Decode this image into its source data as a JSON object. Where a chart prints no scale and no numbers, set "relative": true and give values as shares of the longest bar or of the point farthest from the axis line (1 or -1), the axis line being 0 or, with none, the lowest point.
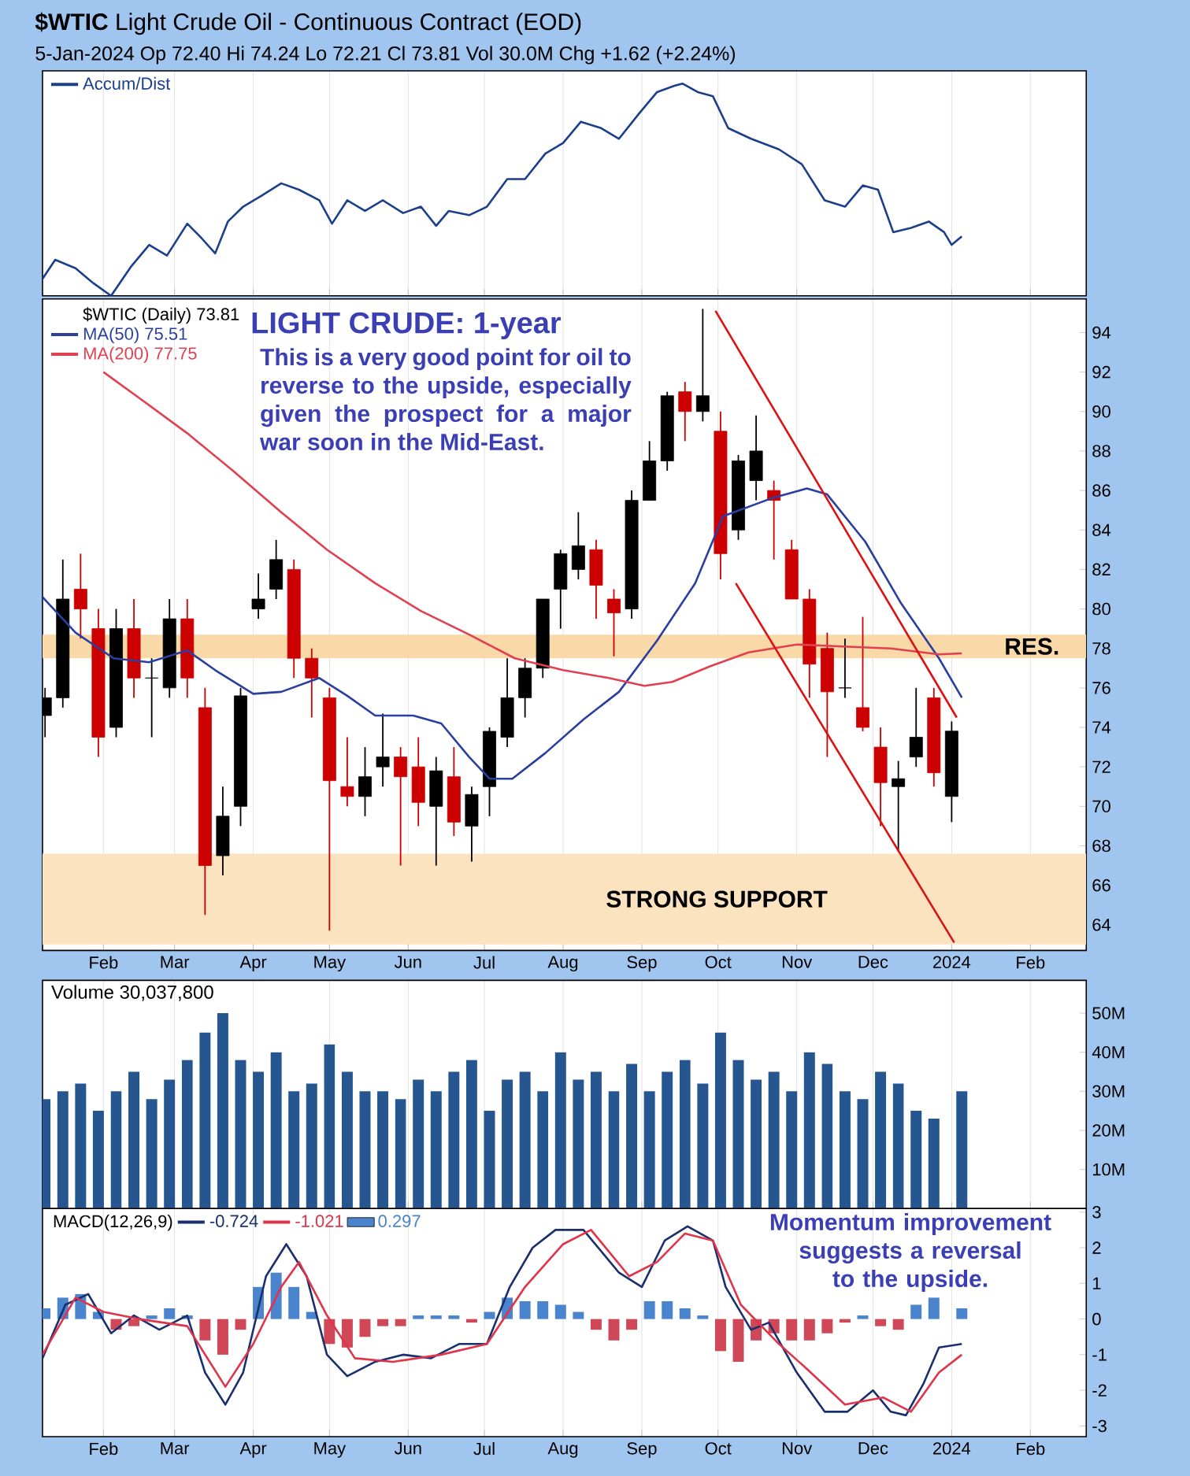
{
  "chart_data": [
    {
      "type": "line",
      "title": "**$WTIC** Light Crude Oil - Continuous Contract (EOD)",
      "subtitle": "5-Jan-2024   Op 72.40  Hi 74.24  Lo 72.21  Cl 73.81  Vol 30.0M  Chg +1.62 (+2.24%)",
      "relative": true,
      "x": [
        "2023-01-08",
        "2023-01-13",
        "2023-01-21",
        "2023-01-28",
        "2023-02-04",
        "2023-02-12",
        "2023-02-19",
        "2023-02-26",
        "2023-03-06",
        "2023-03-11",
        "2023-03-17",
        "2023-03-22",
        "2023-03-28",
        "2023-04-04",
        "2023-04-12",
        "2023-04-19",
        "2023-04-27",
        "2023-05-02",
        "2023-05-08",
        "2023-05-15",
        "2023-05-22",
        "2023-05-30",
        "2023-06-06",
        "2023-06-12",
        "2023-06-17",
        "2023-06-25",
        "2023-07-02",
        "2023-07-10",
        "2023-07-17",
        "2023-07-25",
        "2023-08-01",
        "2023-08-08",
        "2023-08-16",
        "2023-08-23",
        "2023-08-31",
        "2023-09-07",
        "2023-09-14",
        "2023-09-17",
        "2023-09-23",
        "2023-09-29",
        "2023-10-05",
        "2023-10-14",
        "2023-10-25",
        "2023-11-03",
        "2023-11-12",
        "2023-11-20",
        "2023-11-27",
        "2023-12-03",
        "2023-12-09",
        "2023-12-16",
        "2023-12-23",
        "2023-12-29",
        "2024-01-01",
        "2024-01-05"
      ],
      "series": [
        {
          "name": "Accum/Dist",
          "color": "#1c3f8c",
          "values": [
            0.08,
            0.17,
            0.13,
            0.06,
            0,
            0.14,
            0.24,
            0.19,
            0.34,
            0.28,
            0.2,
            0.35,
            0.42,
            0.47,
            0.53,
            0.5,
            0.45,
            0.34,
            0.45,
            0.4,
            0.45,
            0.39,
            0.42,
            0.33,
            0.4,
            0.38,
            0.42,
            0.55,
            0.55,
            0.67,
            0.72,
            0.82,
            0.79,
            0.74,
            0.86,
            0.96,
            0.99,
            1,
            0.96,
            0.94,
            0.79,
            0.74,
            0.69,
            0.62,
            0.45,
            0.42,
            0.52,
            0.5,
            0.3,
            0.32,
            0.35,
            0.3,
            0.24,
            0.28
          ]
        }
      ],
      "xlim": [
        "2023-01-08",
        "2024-02-23"
      ],
      "xticks": [
        {
          "value": "2023-02-01",
          "label": null
        },
        {
          "value": "2023-03-01",
          "label": null
        },
        {
          "value": "2023-04-01",
          "label": null
        },
        {
          "value": "2023-05-01",
          "label": null
        },
        {
          "value": "2023-06-01",
          "label": null
        },
        {
          "value": "2023-07-01",
          "label": null
        },
        {
          "value": "2023-08-01",
          "label": null
        },
        {
          "value": "2023-09-01",
          "label": null
        },
        {
          "value": "2023-10-01",
          "label": null
        },
        {
          "value": "2023-11-01",
          "label": null
        },
        {
          "value": "2023-12-01",
          "label": null
        },
        {
          "value": "2024-01-01",
          "label": null
        },
        {
          "value": "2024-02-01",
          "label": null
        }
      ],
      "grid": "x",
      "legend": "top left",
      "tick_labels": false
    },
    {
      "type": "candlestick",
      "legend_title": "$WTIC (Daily) 73.81",
      "annotations": [
        "LIGHT CRUDE: 1-year",
        "This is a very good point for oil to reverse to the upside, especially given the prospect for a major war soon in the Mid-East."
      ],
      "x": [
        "2023-01-09",
        "2023-01-16",
        "2023-01-23",
        "2023-01-30",
        "2023-02-06",
        "2023-02-13",
        "2023-02-20",
        "2023-02-27",
        "2023-03-06",
        "2023-03-13",
        "2023-03-20",
        "2023-03-27",
        "2023-04-03",
        "2023-04-10",
        "2023-04-17",
        "2023-04-24",
        "2023-05-01",
        "2023-05-08",
        "2023-05-15",
        "2023-05-22",
        "2023-05-29",
        "2023-06-05",
        "2023-06-12",
        "2023-06-19",
        "2023-06-26",
        "2023-07-03",
        "2023-07-10",
        "2023-07-17",
        "2023-07-24",
        "2023-07-31",
        "2023-08-07",
        "2023-08-14",
        "2023-08-21",
        "2023-08-28",
        "2023-09-04",
        "2023-09-11",
        "2023-09-18",
        "2023-09-25",
        "2023-10-02",
        "2023-10-09",
        "2023-10-16",
        "2023-10-23",
        "2023-10-30",
        "2023-11-06",
        "2023-11-13",
        "2023-11-20",
        "2023-11-27",
        "2023-12-04",
        "2023-12-11",
        "2023-12-18",
        "2023-12-25",
        "2024-01-01"
      ],
      "ohlc": [
        [
          74.6,
          76,
          73.5,
          75.5
        ],
        [
          75.5,
          82.5,
          75,
          80.5
        ],
        [
          81,
          82.8,
          78.5,
          80
        ],
        [
          79,
          80,
          72.5,
          73.5
        ],
        [
          74,
          80,
          73.5,
          79
        ],
        [
          79,
          80.5,
          75.5,
          76.5
        ],
        [
          76.5,
          77.5,
          73.5,
          76.5
        ],
        [
          76,
          80.5,
          75.5,
          79.5
        ],
        [
          79.5,
          80.5,
          75.5,
          76.5
        ],
        [
          75,
          76,
          64.5,
          67
        ],
        [
          67.5,
          71,
          66.5,
          69.5
        ],
        [
          70,
          76,
          69,
          75.6
        ],
        [
          80,
          81.8,
          79.5,
          80.5
        ],
        [
          81,
          83.5,
          80.5,
          82.5
        ],
        [
          82,
          82.5,
          76.5,
          77.5
        ],
        [
          77.5,
          78,
          74.5,
          76.5
        ],
        [
          75.5,
          76,
          63.7,
          71.3
        ],
        [
          71,
          73.5,
          70,
          70.5
        ],
        [
          70.5,
          73,
          69.5,
          71.5
        ],
        [
          72,
          74.7,
          71,
          72.5
        ],
        [
          72.5,
          73,
          67,
          71.5
        ],
        [
          72,
          73.5,
          69,
          70.2
        ],
        [
          70,
          72.5,
          67,
          71.8
        ],
        [
          71.5,
          73,
          68.5,
          69.2
        ],
        [
          69,
          71,
          67.2,
          70.6
        ],
        [
          71,
          74,
          69.5,
          73.8
        ],
        [
          73.5,
          77.5,
          73,
          75.5
        ],
        [
          75.5,
          77.5,
          74.5,
          77
        ],
        [
          77,
          80.5,
          76.5,
          80.5
        ],
        [
          81,
          83,
          79,
          82.8
        ],
        [
          82,
          84.9,
          81.5,
          83.2
        ],
        [
          83,
          83.5,
          79.5,
          81.2
        ],
        [
          80.5,
          81,
          77.6,
          79.8
        ],
        [
          80,
          86,
          79.5,
          85.5
        ],
        [
          85.5,
          88.5,
          85.5,
          87.5
        ],
        [
          87.5,
          91,
          87,
          90.8
        ],
        [
          91,
          91.5,
          88.5,
          90
        ],
        [
          90,
          95.2,
          89.5,
          90.8
        ],
        [
          89,
          90,
          81.5,
          82.8
        ],
        [
          84,
          87.8,
          83.5,
          87.5
        ],
        [
          86.5,
          89.8,
          85.5,
          88
        ],
        [
          86,
          86.5,
          82.5,
          85.5
        ],
        [
          83,
          83.5,
          80.5,
          80.5
        ],
        [
          80.5,
          81,
          75.5,
          77.2
        ],
        [
          78,
          78.8,
          72.5,
          75.8
        ],
        [
          76,
          78.5,
          75.5,
          76
        ],
        [
          75,
          79.6,
          73.8,
          74
        ],
        [
          73,
          74,
          69,
          71.2
        ],
        [
          71,
          72.3,
          67.7,
          71.4
        ],
        [
          72.5,
          76,
          72,
          73.5
        ],
        [
          75.5,
          76,
          71,
          71.7
        ],
        [
          70.5,
          74.3,
          69.2,
          73.81
        ]
      ],
      "colors": [
        "#000000",
        "#000000",
        "#cc0000",
        "#cc0000",
        "#000000",
        "#cc0000",
        "#000000",
        "#000000",
        "#cc0000",
        "#cc0000",
        "#000000",
        "#000000",
        "#000000",
        "#000000",
        "#cc0000",
        "#cc0000",
        "#cc0000",
        "#cc0000",
        "#000000",
        "#000000",
        "#cc0000",
        "#cc0000",
        "#000000",
        "#cc0000",
        "#000000",
        "#000000",
        "#000000",
        "#000000",
        "#000000",
        "#000000",
        "#000000",
        "#cc0000",
        "#cc0000",
        "#000000",
        "#000000",
        "#000000",
        "#cc0000",
        "#000000",
        "#cc0000",
        "#000000",
        "#000000",
        "#cc0000",
        "#cc0000",
        "#cc0000",
        "#cc0000",
        "#000000",
        "#cc0000",
        "#cc0000",
        "#000000",
        "#000000",
        "#cc0000",
        "#000000"
      ],
      "series": [
        {
          "name": "MA(50) 75.51",
          "type": "line",
          "color": "#2a3fa0",
          "x": [
            "2023-01-08",
            "2023-01-21",
            "2023-02-05",
            "2023-02-19",
            "2023-03-06",
            "2023-03-17",
            "2023-04-01",
            "2023-04-12",
            "2023-04-27",
            "2023-05-08",
            "2023-05-19",
            "2023-06-03",
            "2023-06-14",
            "2023-06-25",
            "2023-07-03",
            "2023-07-12",
            "2023-07-25",
            "2023-08-09",
            "2023-08-23",
            "2023-09-07",
            "2023-09-22",
            "2023-10-03",
            "2023-10-22",
            "2023-11-05",
            "2023-11-13",
            "2023-11-28",
            "2023-12-12",
            "2023-12-27",
            "2024-01-05"
          ],
          "values": [
            80.6,
            78.8,
            77.5,
            77.3,
            77.9,
            76.9,
            75.7,
            75.8,
            76.5,
            75.6,
            74.6,
            74.6,
            74.2,
            72.5,
            71.4,
            71.4,
            72.7,
            74.4,
            75.8,
            78.4,
            81.3,
            84.7,
            85.6,
            86.1,
            85.8,
            83.4,
            80.3,
            77.5,
            75.51
          ]
        },
        {
          "name": "MA(200) 77.75",
          "type": "line",
          "color": "#e04050",
          "x": [
            "2023-02-01",
            "2023-02-16",
            "2023-03-06",
            "2023-03-24",
            "2023-04-12",
            "2023-04-30",
            "2023-05-19",
            "2023-06-06",
            "2023-06-25",
            "2023-07-13",
            "2023-08-01",
            "2023-08-19",
            "2023-09-02",
            "2023-09-13",
            "2023-09-28",
            "2023-10-13",
            "2023-11-01",
            "2023-11-19",
            "2023-12-08",
            "2023-12-27",
            "2024-01-05"
          ],
          "values": [
            92.0,
            90.6,
            88.9,
            87.0,
            84.9,
            83.0,
            81.3,
            79.9,
            78.7,
            77.5,
            76.9,
            76.5,
            76.1,
            76.3,
            77.1,
            77.8,
            78.2,
            78.1,
            78.0,
            77.7,
            77.75
          ]
        },
        {
          "type": "line",
          "color": "#dd1111",
          "x": [
            "2023-09-30",
            "2024-01-03"
          ],
          "values": [
            95.1,
            74.5
          ]
        },
        {
          "type": "line",
          "color": "#dd1111",
          "x": [
            "2023-10-08",
            "2024-01-02"
          ],
          "values": [
            81.3,
            63.1
          ]
        }
      ],
      "bands": [
        {
          "axis": "y",
          "from": 63.0,
          "to": 67.6,
          "label": "STRONG SUPPORT",
          "color": "#fbe3c0"
        },
        {
          "axis": "y",
          "from": 77.5,
          "to": 78.7,
          "label": "RES.",
          "color": "#f9d9a8"
        }
      ],
      "xlim": [
        "2023-01-08",
        "2024-02-23"
      ],
      "xticks": [
        {
          "value": "2023-02-01",
          "label": "Feb"
        },
        {
          "value": "2023-03-01",
          "label": "Mar"
        },
        {
          "value": "2023-04-01",
          "label": "Apr"
        },
        {
          "value": "2023-05-01",
          "label": "May"
        },
        {
          "value": "2023-06-01",
          "label": "Jun"
        },
        {
          "value": "2023-07-01",
          "label": "Jul"
        },
        {
          "value": "2023-08-01",
          "label": "Aug"
        },
        {
          "value": "2023-09-01",
          "label": "Sep"
        },
        {
          "value": "2023-10-01",
          "label": "Oct"
        },
        {
          "value": "2023-11-01",
          "label": "Nov"
        },
        {
          "value": "2023-12-01",
          "label": "Dec"
        },
        {
          "value": "2024-01-01",
          "label": "2024"
        },
        {
          "value": "2024-02-01",
          "label": "Feb"
        }
      ],
      "ylim": [
        62.7,
        95.7
      ],
      "yticks": [
        64,
        66,
        68,
        70,
        72,
        74,
        76,
        78,
        80,
        82,
        84,
        86,
        88,
        90,
        92,
        94
      ],
      "grid": "x",
      "legend": "top left"
    },
    {
      "type": "bar",
      "title": "Volume 30,037,800",
      "x": [
        "2023-01-09",
        "2023-01-16",
        "2023-01-23",
        "2023-01-30",
        "2023-02-06",
        "2023-02-13",
        "2023-02-20",
        "2023-02-27",
        "2023-03-06",
        "2023-03-13",
        "2023-03-20",
        "2023-03-27",
        "2023-04-03",
        "2023-04-10",
        "2023-04-17",
        "2023-04-24",
        "2023-05-01",
        "2023-05-08",
        "2023-05-15",
        "2023-05-22",
        "2023-05-29",
        "2023-06-05",
        "2023-06-12",
        "2023-06-19",
        "2023-06-26",
        "2023-07-03",
        "2023-07-10",
        "2023-07-17",
        "2023-07-24",
        "2023-07-31",
        "2023-08-07",
        "2023-08-14",
        "2023-08-21",
        "2023-08-28",
        "2023-09-04",
        "2023-09-11",
        "2023-09-18",
        "2023-09-25",
        "2023-10-02",
        "2023-10-09",
        "2023-10-16",
        "2023-10-23",
        "2023-10-30",
        "2023-11-06",
        "2023-11-13",
        "2023-11-20",
        "2023-11-27",
        "2023-12-04",
        "2023-12-11",
        "2023-12-18",
        "2023-12-25",
        "2024-01-05"
      ],
      "values": [
        28,
        30,
        32,
        25,
        30,
        35,
        28,
        33,
        38,
        45,
        50,
        38,
        35,
        40,
        30,
        32,
        42,
        35,
        30,
        30,
        28,
        33,
        30,
        35,
        38,
        25,
        33,
        35,
        30,
        40,
        33,
        35,
        30,
        37,
        30,
        35,
        38,
        32,
        45,
        38,
        33,
        35,
        30,
        40,
        37,
        30,
        28,
        35,
        32,
        25,
        23,
        30
      ],
      "color": "#25568f",
      "xlim": [
        "2023-01-08",
        "2024-02-23"
      ],
      "xticks": [
        {
          "value": "2023-02-01",
          "label": null
        },
        {
          "value": "2023-03-01",
          "label": null
        },
        {
          "value": "2023-04-01",
          "label": null
        },
        {
          "value": "2023-05-01",
          "label": null
        },
        {
          "value": "2023-06-01",
          "label": null
        },
        {
          "value": "2023-07-01",
          "label": null
        },
        {
          "value": "2023-08-01",
          "label": null
        },
        {
          "value": "2023-09-01",
          "label": null
        },
        {
          "value": "2023-10-01",
          "label": null
        },
        {
          "value": "2023-11-01",
          "label": null
        },
        {
          "value": "2023-12-01",
          "label": null
        },
        {
          "value": "2024-01-01",
          "label": null
        },
        {
          "value": "2024-02-01",
          "label": null
        }
      ],
      "ylim": [
        0,
        58.4
      ],
      "yticks": [
        {
          "value": 10,
          "label": "10M"
        },
        {
          "value": 20,
          "label": "20M"
        },
        {
          "value": 30,
          "label": "30M"
        },
        {
          "value": 40,
          "label": "40M"
        },
        {
          "value": 50,
          "label": "50M"
        }
      ],
      "grid": "x",
      "tick_labels": "y"
    },
    {
      "type": "line",
      "legend_title": "MACD(12,26,9)",
      "annotations": [
        "Momentum improvement suggests a reversal to the upside."
      ],
      "series": [
        {
          "name": "-0.724",
          "color": "#1a2f6e",
          "x": [
            "2023-01-08",
            "2023-01-17",
            "2023-01-26",
            "2023-02-04",
            "2023-02-13",
            "2023-02-23",
            "2023-03-06",
            "2023-03-13",
            "2023-03-21",
            "2023-03-28",
            "2023-04-06",
            "2023-04-14",
            "2023-04-22",
            "2023-04-30",
            "2023-05-08",
            "2023-05-19",
            "2023-05-30",
            "2023-06-10",
            "2023-06-21",
            "2023-07-02",
            "2023-07-11",
            "2023-07-20",
            "2023-07-29",
            "2023-08-09",
            "2023-08-23",
            "2023-09-01",
            "2023-09-10",
            "2023-09-19",
            "2023-09-29",
            "2023-10-04",
            "2023-10-14",
            "2023-10-21",
            "2023-11-01",
            "2023-11-12",
            "2023-11-21",
            "2023-12-01",
            "2023-12-08",
            "2023-12-14",
            "2023-12-21",
            "2023-12-27",
            "2024-01-05"
          ],
          "values": [
            -1.1,
            0.4,
            0.7,
            -0.4,
            0.1,
            -0.3,
            0.1,
            -1.5,
            -2.4,
            -1.5,
            1.2,
            2.1,
            1.2,
            -1.0,
            -1.6,
            -1.2,
            -1.0,
            -1.1,
            -0.7,
            -0.7,
            0.9,
            2.0,
            2.5,
            2.5,
            1.3,
            0.9,
            2.2,
            2.6,
            2.2,
            0.9,
            -0.3,
            -0.1,
            -1.5,
            -2.6,
            -2.6,
            -2.0,
            -2.6,
            -2.7,
            -1.8,
            -0.8,
            -0.7
          ]
        },
        {
          "name": "-1.021",
          "color": "#e0344a",
          "x": [
            "2023-01-08",
            "2023-01-21",
            "2023-02-01",
            "2023-02-15",
            "2023-03-06",
            "2023-03-21",
            "2023-04-01",
            "2023-04-12",
            "2023-04-19",
            "2023-04-30",
            "2023-05-11",
            "2023-05-26",
            "2023-06-14",
            "2023-07-02",
            "2023-07-17",
            "2023-08-01",
            "2023-08-12",
            "2023-08-27",
            "2023-09-07",
            "2023-09-18",
            "2023-09-29",
            "2023-10-10",
            "2023-10-25",
            "2023-11-05",
            "2023-11-20",
            "2023-12-05",
            "2023-12-16",
            "2023-12-27",
            "2024-01-05"
          ],
          "values": [
            -1.0,
            0.6,
            0.2,
            0.0,
            -0.2,
            -1.9,
            -0.7,
            0.9,
            1.6,
            0.1,
            -1.1,
            -1.2,
            -1.0,
            -0.7,
            0.9,
            2.1,
            2.5,
            1.2,
            1.6,
            2.4,
            2.2,
            0.4,
            -0.7,
            -1.4,
            -2.4,
            -2.2,
            -2.6,
            -1.5,
            -1.0
          ]
        },
        {
          "name": "0.297",
          "type": "bar",
          "color": "#4a84cc",
          "x": [
            "2023-01-09",
            "2023-01-16",
            "2023-01-23",
            "2023-01-30",
            "2023-02-06",
            "2023-02-13",
            "2023-02-20",
            "2023-02-27",
            "2023-03-06",
            "2023-03-13",
            "2023-03-20",
            "2023-03-27",
            "2023-04-03",
            "2023-04-10",
            "2023-04-17",
            "2023-04-24",
            "2023-05-01",
            "2023-05-08",
            "2023-05-15",
            "2023-05-22",
            "2023-05-29",
            "2023-06-05",
            "2023-06-12",
            "2023-06-19",
            "2023-06-26",
            "2023-07-03",
            "2023-07-10",
            "2023-07-17",
            "2023-07-24",
            "2023-07-31",
            "2023-08-07",
            "2023-08-14",
            "2023-08-21",
            "2023-08-28",
            "2023-09-04",
            "2023-09-11",
            "2023-09-18",
            "2023-09-25",
            "2023-10-02",
            "2023-10-09",
            "2023-10-16",
            "2023-10-23",
            "2023-10-30",
            "2023-11-06",
            "2023-11-13",
            "2023-11-20",
            "2023-11-27",
            "2023-12-04",
            "2023-12-11",
            "2023-12-18",
            "2023-12-25",
            "2024-01-05"
          ],
          "values": [
            0.3,
            0.6,
            0.7,
            0.2,
            -0.3,
            -0.2,
            0.1,
            0.3,
            0.1,
            -0.6,
            -1.0,
            -0.3,
            0.9,
            1.3,
            0.9,
            0.2,
            -0.7,
            -0.8,
            -0.5,
            -0.2,
            -0.2,
            0.1,
            0.1,
            0.1,
            -0.1,
            0.2,
            0.6,
            0.5,
            0.5,
            0.4,
            0.2,
            -0.3,
            -0.6,
            -0.3,
            0.5,
            0.5,
            0.3,
            0.1,
            -0.9,
            -1.2,
            -0.6,
            -0.4,
            -0.6,
            -0.6,
            -0.4,
            -0.1,
            0.1,
            -0.2,
            -0.3,
            0.4,
            0.6,
            0.3
          ],
          "colors": [
            "#4a84cc",
            "#4a84cc",
            "#4a84cc",
            "#4a84cc",
            "#d04858",
            "#d04858",
            "#4a84cc",
            "#4a84cc",
            "#4a84cc",
            "#d04858",
            "#d04858",
            "#d04858",
            "#4a84cc",
            "#4a84cc",
            "#4a84cc",
            "#4a84cc",
            "#d04858",
            "#d04858",
            "#d04858",
            "#d04858",
            "#d04858",
            "#4a84cc",
            "#4a84cc",
            "#4a84cc",
            "#d04858",
            "#4a84cc",
            "#4a84cc",
            "#4a84cc",
            "#4a84cc",
            "#4a84cc",
            "#4a84cc",
            "#d04858",
            "#d04858",
            "#d04858",
            "#4a84cc",
            "#4a84cc",
            "#4a84cc",
            "#4a84cc",
            "#d04858",
            "#d04858",
            "#d04858",
            "#d04858",
            "#d04858",
            "#d04858",
            "#d04858",
            "#d04858",
            "#4a84cc",
            "#d04858",
            "#d04858",
            "#4a84cc",
            "#4a84cc",
            "#4a84cc"
          ]
        }
      ],
      "xlim": [
        "2023-01-08",
        "2024-02-23"
      ],
      "xticks": [
        {
          "value": "2023-02-01",
          "label": "Feb"
        },
        {
          "value": "2023-03-01",
          "label": "Mar"
        },
        {
          "value": "2023-04-01",
          "label": "Apr"
        },
        {
          "value": "2023-05-01",
          "label": "May"
        },
        {
          "value": "2023-06-01",
          "label": "Jun"
        },
        {
          "value": "2023-07-01",
          "label": "Jul"
        },
        {
          "value": "2023-08-01",
          "label": "Aug"
        },
        {
          "value": "2023-09-01",
          "label": "Sep"
        },
        {
          "value": "2023-10-01",
          "label": "Oct"
        },
        {
          "value": "2023-11-01",
          "label": "Nov"
        },
        {
          "value": "2023-12-01",
          "label": "Dec"
        },
        {
          "value": "2024-01-01",
          "label": "2024"
        },
        {
          "value": "2024-02-01",
          "label": "Feb"
        }
      ],
      "ylim": [
        -3.3,
        3.1
      ],
      "yticks": [
        -3,
        -2,
        -1,
        0,
        1,
        2,
        3
      ],
      "grid": "x",
      "legend": "top left"
    }
  ]
}
